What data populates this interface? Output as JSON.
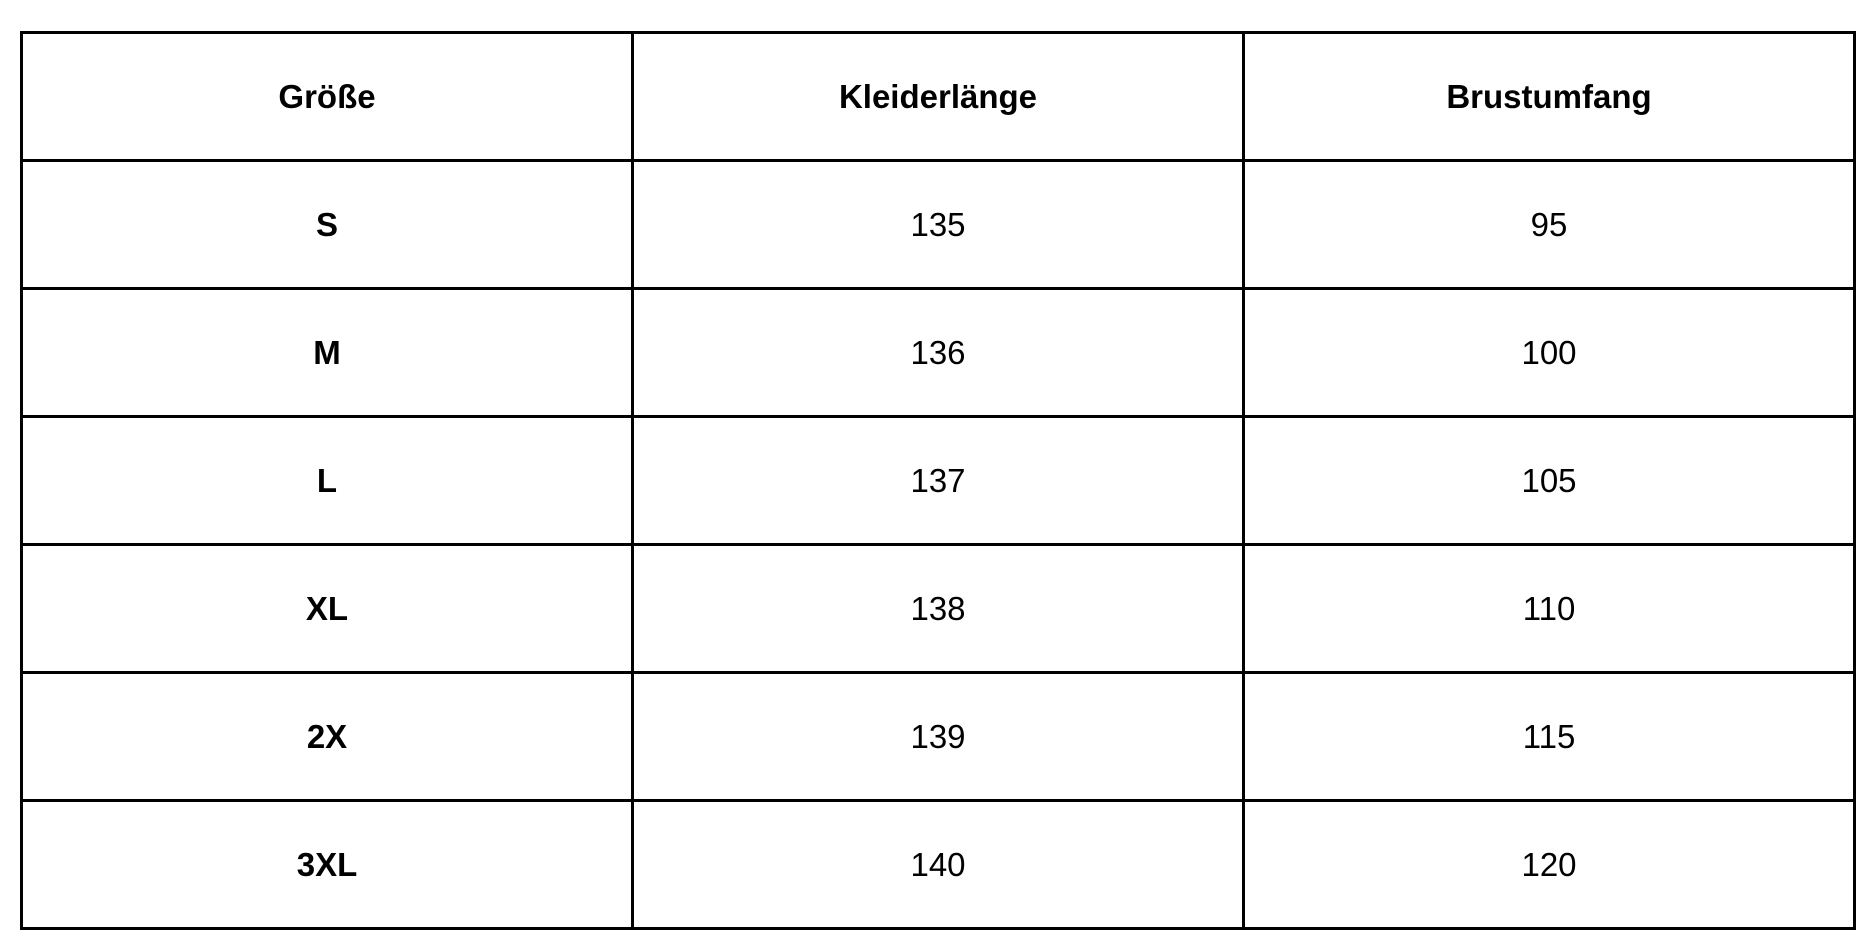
{
  "table": {
    "headers": [
      "Größe",
      "Kleiderlänge",
      "Brustumfang"
    ],
    "rows": [
      [
        "S",
        "135",
        "95"
      ],
      [
        "M",
        "136",
        "100"
      ],
      [
        "L",
        "137",
        "105"
      ],
      [
        "XL",
        "138",
        "110"
      ],
      [
        "2X",
        "139",
        "115"
      ],
      [
        "3XL",
        "140",
        "120"
      ]
    ]
  }
}
